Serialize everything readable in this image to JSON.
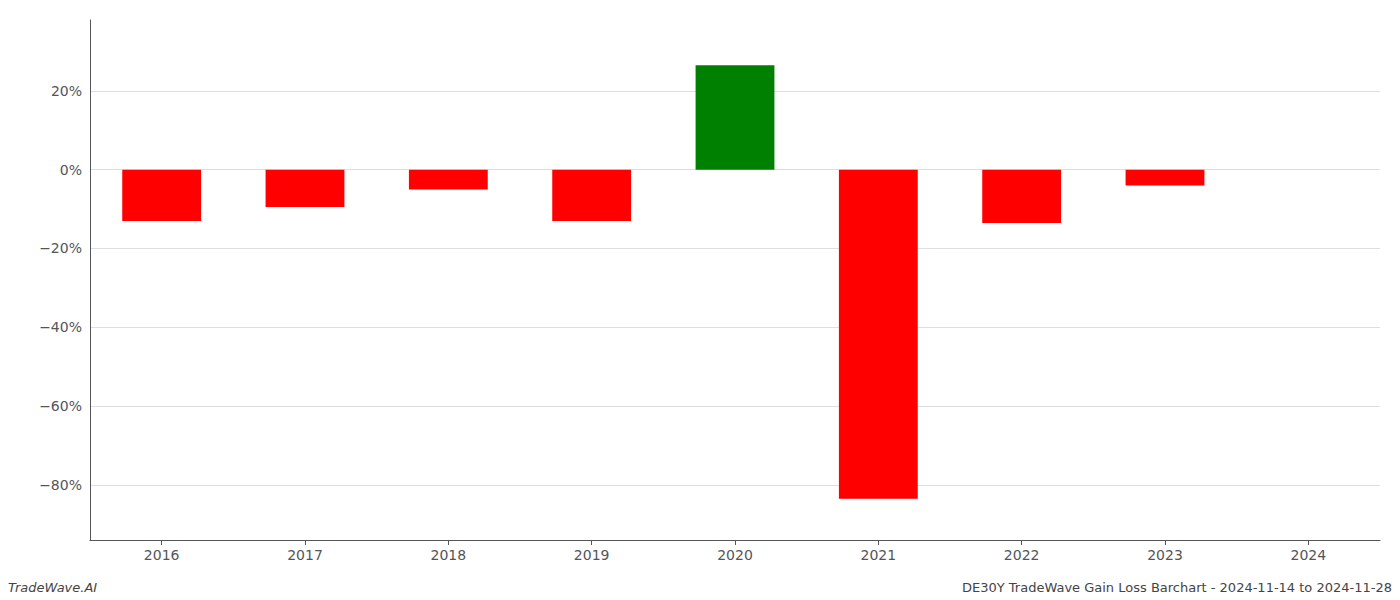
{
  "chart_data": {
    "type": "bar",
    "categories": [
      "2016",
      "2017",
      "2018",
      "2019",
      "2020",
      "2021",
      "2022",
      "2023",
      "2024"
    ],
    "values": [
      -0.13,
      -0.095,
      -0.05,
      -0.13,
      0.265,
      -0.835,
      -0.135,
      -0.04,
      0.0
    ],
    "colors": [
      "#ff0000",
      "#ff0000",
      "#ff0000",
      "#ff0000",
      "#008000",
      "#ff0000",
      "#ff0000",
      "#ff0000",
      "#ff0000"
    ],
    "ylim": [
      -0.94,
      0.38
    ],
    "yticks": [
      {
        "value": 0.2,
        "label": "20%"
      },
      {
        "value": 0.0,
        "label": "0%"
      },
      {
        "value": -0.2,
        "label": "−20%"
      },
      {
        "value": -0.4,
        "label": "−40%"
      },
      {
        "value": -0.6,
        "label": "−60%"
      },
      {
        "value": -0.8,
        "label": "−80%"
      }
    ],
    "grid": true,
    "annotations": [
      "TradeWave.AI",
      "DE30Y TradeWave Gain Loss Barchart - 2024-11-14 to 2024-11-28"
    ]
  }
}
